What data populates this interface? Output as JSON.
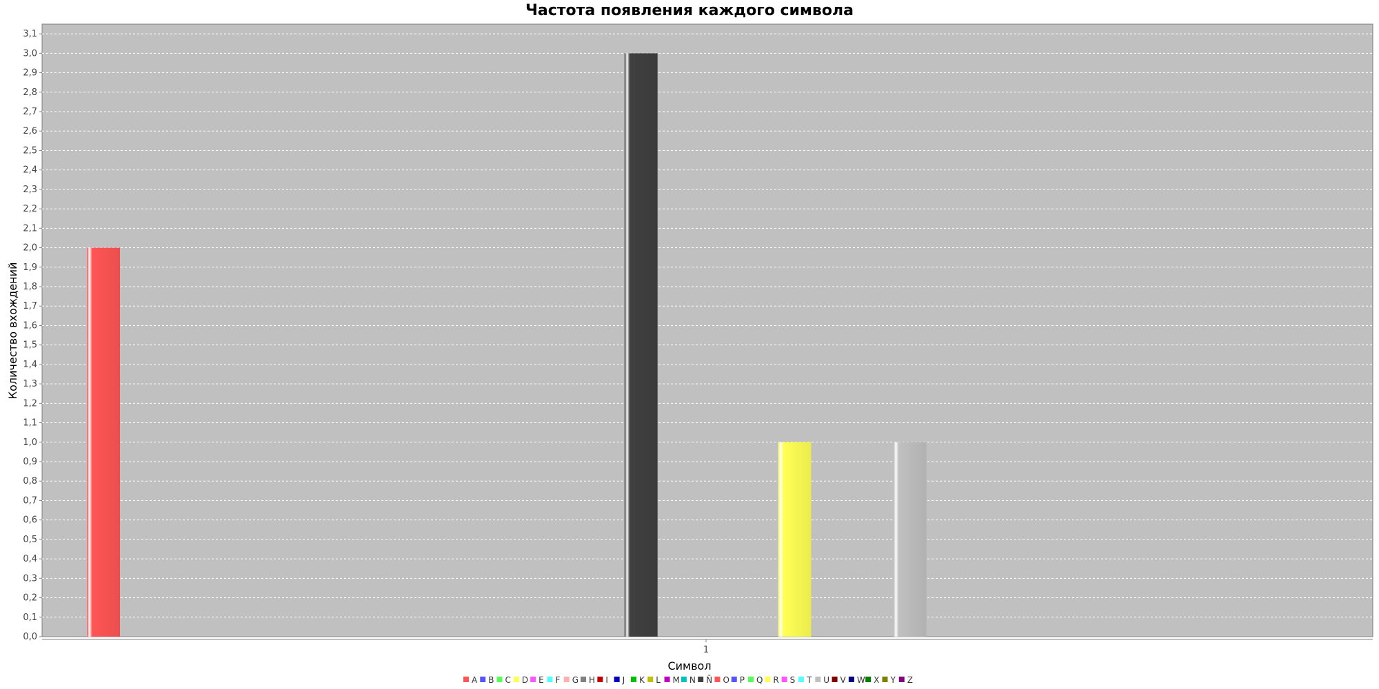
{
  "colors": {
    "page_background": "#ffffff",
    "plot_background": "#c0c0c0",
    "gridline": "#ffffff",
    "axis": "#808080"
  },
  "chart_data": {
    "type": "bar",
    "title": "Частота появления каждого символа",
    "xlabel": "Символ",
    "ylabel": "Количество вхождений",
    "categories": [
      "1"
    ],
    "ylim": [
      0,
      3.15
    ],
    "y_ticks": [
      "0,0",
      "0,1",
      "0,2",
      "0,3",
      "0,4",
      "0,5",
      "0,6",
      "0,7",
      "0,8",
      "0,9",
      "1,0",
      "1,1",
      "1,2",
      "1,3",
      "1,4",
      "1,5",
      "1,6",
      "1,7",
      "1,8",
      "1,9",
      "2,0",
      "2,1",
      "2,2",
      "2,3",
      "2,4",
      "2,5",
      "2,6",
      "2,7",
      "2,8",
      "2,9",
      "3,0",
      "3,1"
    ],
    "grid": true,
    "legend_position": "bottom",
    "series": [
      {
        "name": "A",
        "color": "#ff5555",
        "values": [
          2
        ]
      },
      {
        "name": "B",
        "color": "#5555ff",
        "values": [
          0
        ]
      },
      {
        "name": "C",
        "color": "#55ff55",
        "values": [
          0
        ]
      },
      {
        "name": "D",
        "color": "#ffff55",
        "values": [
          0
        ]
      },
      {
        "name": "E",
        "color": "#ff55ff",
        "values": [
          0
        ]
      },
      {
        "name": "F",
        "color": "#55ffff",
        "values": [
          0
        ]
      },
      {
        "name": "G",
        "color": "#ffafaf",
        "values": [
          0
        ]
      },
      {
        "name": "H",
        "color": "#808080",
        "values": [
          0
        ]
      },
      {
        "name": "I",
        "color": "#c00000",
        "values": [
          0
        ]
      },
      {
        "name": "J",
        "color": "#0000c0",
        "values": [
          0
        ]
      },
      {
        "name": "K",
        "color": "#00c000",
        "values": [
          0
        ]
      },
      {
        "name": "L",
        "color": "#c0c000",
        "values": [
          0
        ]
      },
      {
        "name": "M",
        "color": "#c000c0",
        "values": [
          0
        ]
      },
      {
        "name": "N",
        "color": "#00c0c0",
        "values": [
          0
        ]
      },
      {
        "name": "Ñ",
        "color": "#404040",
        "values": [
          3
        ]
      },
      {
        "name": "O",
        "color": "#ff5555",
        "values": [
          0
        ]
      },
      {
        "name": "P",
        "color": "#5555ff",
        "values": [
          0
        ]
      },
      {
        "name": "Q",
        "color": "#55ff55",
        "values": [
          0
        ]
      },
      {
        "name": "R",
        "color": "#ffff55",
        "values": [
          1
        ]
      },
      {
        "name": "S",
        "color": "#ff55ff",
        "values": [
          0
        ]
      },
      {
        "name": "T",
        "color": "#55ffff",
        "values": [
          0
        ]
      },
      {
        "name": "U",
        "color": "#c0c0c0",
        "values": [
          1
        ]
      },
      {
        "name": "V",
        "color": "#800000",
        "values": [
          0
        ]
      },
      {
        "name": "W",
        "color": "#000080",
        "values": [
          0
        ]
      },
      {
        "name": "X",
        "color": "#008000",
        "values": [
          0
        ]
      },
      {
        "name": "Y",
        "color": "#808000",
        "values": [
          0
        ]
      },
      {
        "name": "Z",
        "color": "#800080",
        "values": [
          0
        ]
      }
    ]
  }
}
